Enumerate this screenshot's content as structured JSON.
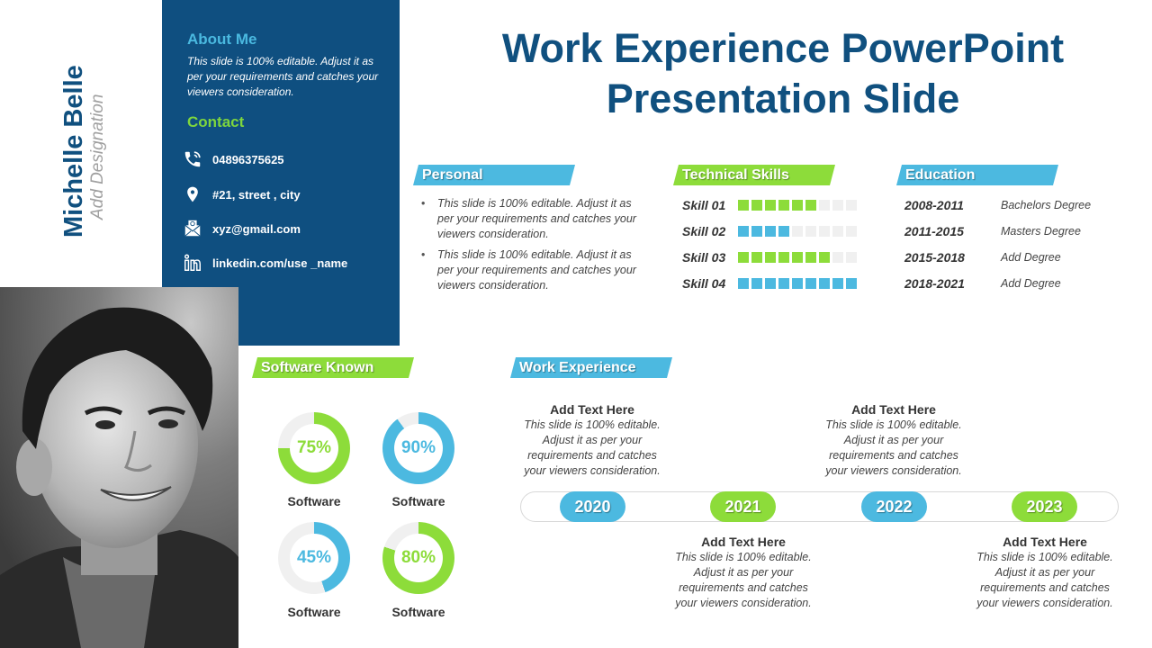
{
  "profile": {
    "name": "Michelle Belle",
    "designation": "Add Designation"
  },
  "about": {
    "heading": "About Me",
    "text": "This slide is 100% editable. Adjust it as per your requirements and catches your viewers consideration."
  },
  "contact": {
    "heading": "Contact",
    "items": [
      {
        "icon": "phone-icon",
        "text": "04896375625"
      },
      {
        "icon": "location-pin-icon",
        "text": "#21, street , city"
      },
      {
        "icon": "envelope-icon",
        "text": "xyz@gmail.com"
      },
      {
        "icon": "linkedin-icon",
        "text": "linkedin.com/use _name"
      }
    ]
  },
  "title": {
    "line1": "Work Experience PowerPoint",
    "line2": "Presentation Slide"
  },
  "personal": {
    "heading": "Personal",
    "bullets": [
      "This slide is 100% editable. Adjust it as per your requirements and catches your viewers consideration.",
      "This slide is 100% editable. Adjust it as per your requirements and catches your viewers consideration."
    ]
  },
  "technical_skills": {
    "heading": "Technical Skills",
    "total_cells": 9,
    "items": [
      {
        "label": "Skill 01",
        "filled": 6,
        "color": "#8ddc3a"
      },
      {
        "label": "Skill 02",
        "filled": 4,
        "color": "#4cb9e0"
      },
      {
        "label": "Skill 03",
        "filled": 7,
        "color": "#8ddc3a"
      },
      {
        "label": "Skill 04",
        "filled": 9,
        "color": "#4cb9e0"
      }
    ]
  },
  "education": {
    "heading": "Education",
    "items": [
      {
        "years": "2008-2011",
        "degree": "Bachelors Degree"
      },
      {
        "years": "2011-2015",
        "degree": "Masters Degree"
      },
      {
        "years": "2015-2018",
        "degree": "Add Degree"
      },
      {
        "years": "2018-2021",
        "degree": "Add Degree"
      }
    ]
  },
  "software_known": {
    "heading": "Software Known",
    "items": [
      {
        "label": "Software",
        "percent": 75,
        "percent_label": "75%",
        "color": "#8ddc3a"
      },
      {
        "label": "Software",
        "percent": 90,
        "percent_label": "90%",
        "color": "#4cb9e0"
      },
      {
        "label": "Software",
        "percent": 45,
        "percent_label": "45%",
        "color": "#4cb9e0"
      },
      {
        "label": "Software",
        "percent": 80,
        "percent_label": "80%",
        "color": "#8ddc3a"
      }
    ]
  },
  "work_experience": {
    "heading": "Work Experience",
    "years": [
      {
        "year": "2020",
        "color": "#4cb9e0"
      },
      {
        "year": "2021",
        "color": "#8ddc3a"
      },
      {
        "year": "2022",
        "color": "#4cb9e0"
      },
      {
        "year": "2023",
        "color": "#8ddc3a"
      }
    ],
    "entries": [
      {
        "heading": "Add Text Here",
        "text": "This slide is 100% editable. Adjust it as per your requirements and catches your viewers consideration."
      },
      {
        "heading": "Add Text Here",
        "text": "This slide is 100% editable. Adjust it as per your requirements and catches your viewers consideration."
      },
      {
        "heading": "Add Text Here",
        "text": "This slide is 100% editable. Adjust it as per your requirements and catches your viewers consideration."
      },
      {
        "heading": "Add Text Here",
        "text": "This slide is 100% editable. Adjust it as per your requirements and catches your viewers consideration."
      }
    ]
  },
  "colors": {
    "navy": "#0f4f80",
    "title_blue": "#10507f",
    "accent_blue": "#4cb9e0",
    "accent_green": "#8ddc3a",
    "track_gray": "#f0f0f0"
  }
}
